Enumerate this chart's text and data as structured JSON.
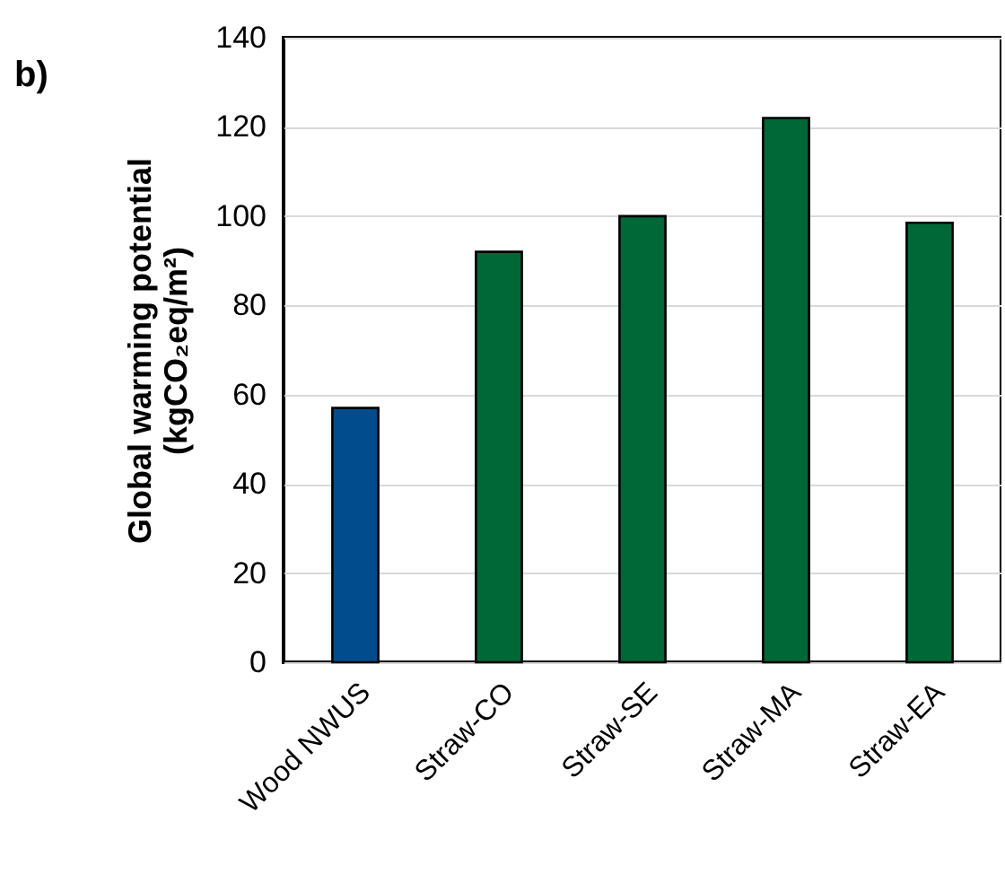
{
  "chart_data": {
    "type": "bar",
    "title": "b)",
    "ylabel": "Global warming potential\n(kgCO₂eq/m²)",
    "categories": [
      "Wood NWUS",
      "Straw-CO",
      "Straw-SE",
      "Straw-MA",
      "Straw-EA"
    ],
    "values": [
      57,
      92,
      100,
      122,
      98.5
    ],
    "colors": [
      "#004c8c",
      "#006837",
      "#006837",
      "#006837",
      "#006837"
    ],
    "ylim": [
      0,
      140
    ],
    "yticks": [
      0,
      20,
      40,
      60,
      80,
      100,
      120,
      140
    ],
    "grid": "y"
  }
}
